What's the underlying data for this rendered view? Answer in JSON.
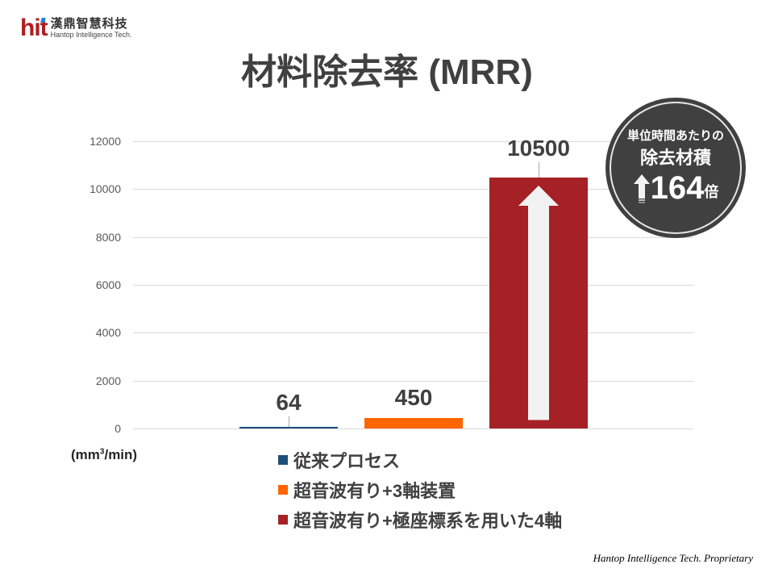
{
  "logo": {
    "mark": "hit",
    "name_cn": "漢鼎智慧科技",
    "name_en": "Hantop Intelligence Tech."
  },
  "title": "材料除去率 (MRR)",
  "unit_label": {
    "prefix": "(mm",
    "sup": "3",
    "suffix": "/min)"
  },
  "badge": {
    "line1": "単位時間あたりの",
    "line2": "除去材積",
    "number": "164",
    "suffix": "倍",
    "icon": "up-arrow-icon"
  },
  "footer": "Hantop Intelligence Tech. Proprietary",
  "colors": {
    "series1": "#1f4e79",
    "series2": "#ff6600",
    "series3": "#a52126",
    "badge_bg": "#404040",
    "arrow": "#f2f2f2"
  },
  "chart_data": {
    "type": "bar",
    "title": "材料除去率 (MRR)",
    "xlabel": "",
    "ylabel": "(mm3/min)",
    "ylim": [
      0,
      12000
    ],
    "yticks": [
      "0",
      "2000",
      "4000",
      "6000",
      "8000",
      "10000",
      "12000"
    ],
    "grid": true,
    "legend_position": "bottom",
    "categories": [
      "従来プロセス",
      "超音波有り+3軸装置",
      "超音波有り+極座標系を用いた4軸"
    ],
    "series": [
      {
        "name": "従来プロセス",
        "values": [
          64
        ],
        "label": "64",
        "color": "#1f4e79"
      },
      {
        "name": "超音波有り+3軸装置",
        "values": [
          450
        ],
        "label": "450",
        "color": "#ff6600"
      },
      {
        "name": "超音波有り+極座標系を用いた4軸",
        "values": [
          10500
        ],
        "label": "10500",
        "color": "#a52126"
      }
    ],
    "annotations": [
      "単位時間あたりの除去材積 164倍"
    ]
  }
}
